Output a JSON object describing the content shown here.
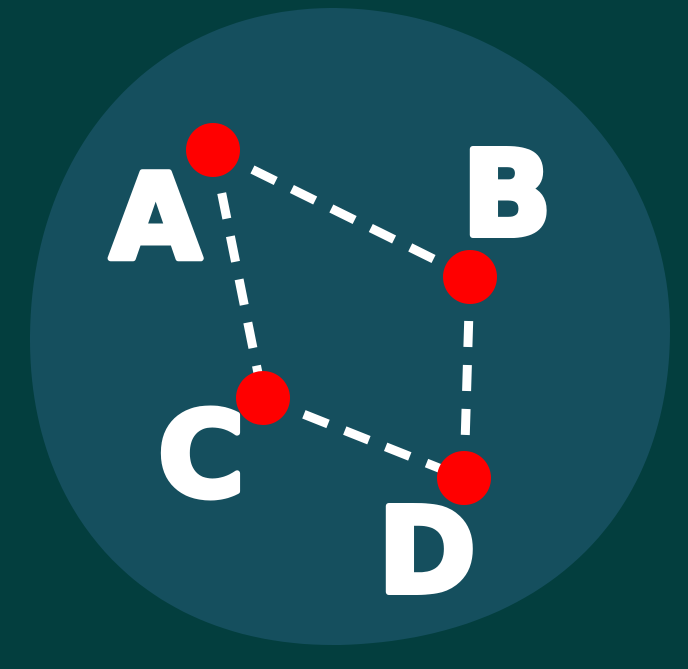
{
  "colors": {
    "background": "#033e3e",
    "disc": "#154f5e",
    "node": "#ff0000",
    "edge": "#ffffff",
    "label": "#ffffff"
  },
  "nodes": [
    {
      "id": "A",
      "label": "A"
    },
    {
      "id": "B",
      "label": "B"
    },
    {
      "id": "C",
      "label": "C"
    },
    {
      "id": "D",
      "label": "D"
    }
  ],
  "edges": [
    {
      "from": "A",
      "to": "B",
      "style": "dashed"
    },
    {
      "from": "A",
      "to": "C",
      "style": "dashed"
    },
    {
      "from": "B",
      "to": "D",
      "style": "dashed"
    },
    {
      "from": "C",
      "to": "D",
      "style": "dashed"
    }
  ]
}
